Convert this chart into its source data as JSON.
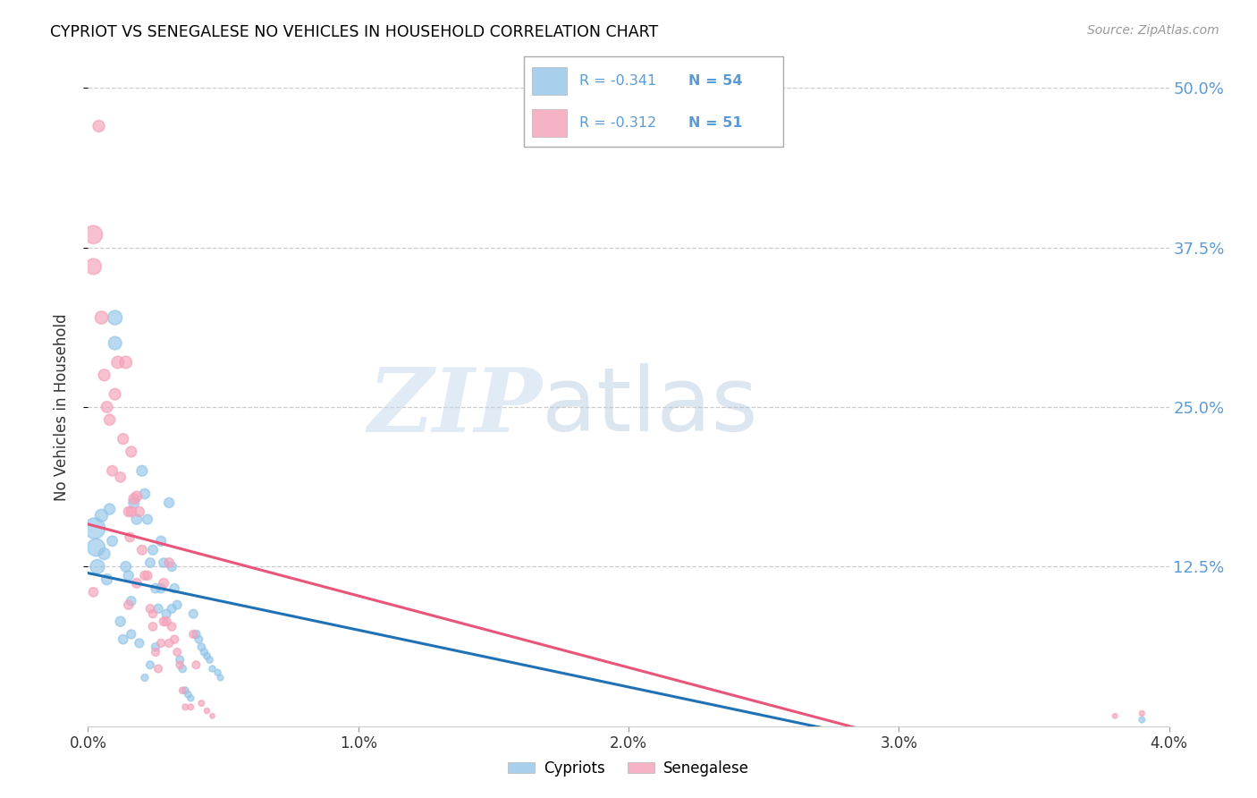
{
  "title": "CYPRIOT VS SENEGALESE NO VEHICLES IN HOUSEHOLD CORRELATION CHART",
  "source": "Source: ZipAtlas.com",
  "ylabel": "No Vehicles in Household",
  "watermark_zip": "ZIP",
  "watermark_atlas": "atlas",
  "xlim": [
    0.0,
    0.04
  ],
  "ylim": [
    0.0,
    0.5
  ],
  "xtick_labels": [
    "0.0%",
    "1.0%",
    "2.0%",
    "3.0%",
    "4.0%"
  ],
  "xtick_values": [
    0.0,
    0.01,
    0.02,
    0.03,
    0.04
  ],
  "ytick_values": [
    0.125,
    0.25,
    0.375,
    0.5
  ],
  "right_ytick_labels": [
    "12.5%",
    "25.0%",
    "37.5%",
    "50.0%"
  ],
  "cypriot_color": "#92C5E8",
  "senegalese_color": "#F4A0B8",
  "cypriot_line_color": "#2171B5",
  "senegalese_line_color": "#E8547A",
  "legend_R_cypriot": "-0.341",
  "legend_N_cypriot": "54",
  "legend_R_senegalese": "-0.312",
  "legend_N_senegalese": "51",
  "right_axis_color": "#5B9BD5",
  "cypriot_x": [
    0.00025,
    0.0003,
    0.00035,
    0.0005,
    0.0006,
    0.0007,
    0.0008,
    0.0009,
    0.001,
    0.001,
    0.0012,
    0.0013,
    0.0014,
    0.0015,
    0.0016,
    0.0016,
    0.0017,
    0.0018,
    0.0019,
    0.002,
    0.0021,
    0.0022,
    0.0023,
    0.0024,
    0.0025,
    0.0026,
    0.0027,
    0.0028,
    0.0029,
    0.003,
    0.0031,
    0.0032,
    0.0033,
    0.0034,
    0.0035,
    0.0036,
    0.0037,
    0.0038,
    0.0039,
    0.004,
    0.0041,
    0.0042,
    0.0043,
    0.0044,
    0.0045,
    0.0046,
    0.0048,
    0.0049,
    0.0031,
    0.0027,
    0.0025,
    0.0023,
    0.0021,
    0.039
  ],
  "cypriot_y": [
    0.155,
    0.14,
    0.125,
    0.165,
    0.135,
    0.115,
    0.17,
    0.145,
    0.32,
    0.3,
    0.082,
    0.068,
    0.125,
    0.118,
    0.098,
    0.072,
    0.175,
    0.162,
    0.065,
    0.2,
    0.182,
    0.162,
    0.128,
    0.138,
    0.108,
    0.092,
    0.145,
    0.128,
    0.088,
    0.175,
    0.125,
    0.108,
    0.095,
    0.052,
    0.045,
    0.028,
    0.025,
    0.022,
    0.088,
    0.072,
    0.068,
    0.062,
    0.058,
    0.055,
    0.052,
    0.045,
    0.042,
    0.038,
    0.092,
    0.108,
    0.062,
    0.048,
    0.038,
    0.005
  ],
  "cypriot_sizes": [
    280,
    200,
    130,
    100,
    85,
    75,
    75,
    68,
    130,
    110,
    62,
    55,
    68,
    62,
    55,
    50,
    72,
    65,
    50,
    72,
    65,
    60,
    58,
    60,
    55,
    52,
    62,
    55,
    50,
    62,
    55,
    52,
    48,
    40,
    36,
    30,
    28,
    25,
    48,
    42,
    38,
    35,
    33,
    30,
    28,
    25,
    25,
    22,
    48,
    55,
    42,
    38,
    32,
    22
  ],
  "senegalese_x": [
    0.0002,
    0.0002,
    0.0004,
    0.0005,
    0.0006,
    0.0007,
    0.0008,
    0.0009,
    0.001,
    0.0011,
    0.0012,
    0.0013,
    0.0014,
    0.0015,
    0.00155,
    0.0016,
    0.0017,
    0.0018,
    0.0019,
    0.002,
    0.0021,
    0.0022,
    0.0023,
    0.0024,
    0.0025,
    0.0026,
    0.0027,
    0.0028,
    0.0029,
    0.003,
    0.0031,
    0.0032,
    0.0033,
    0.0034,
    0.0035,
    0.0036,
    0.0038,
    0.0039,
    0.004,
    0.0042,
    0.0044,
    0.0046,
    0.003,
    0.0024,
    0.0016,
    0.0015,
    0.0018,
    0.0028,
    0.0002,
    0.039,
    0.038
  ],
  "senegalese_y": [
    0.385,
    0.36,
    0.47,
    0.32,
    0.275,
    0.25,
    0.24,
    0.2,
    0.26,
    0.285,
    0.195,
    0.225,
    0.285,
    0.168,
    0.148,
    0.215,
    0.178,
    0.18,
    0.168,
    0.138,
    0.118,
    0.118,
    0.092,
    0.088,
    0.058,
    0.045,
    0.065,
    0.112,
    0.082,
    0.128,
    0.078,
    0.068,
    0.058,
    0.048,
    0.028,
    0.015,
    0.015,
    0.072,
    0.048,
    0.018,
    0.012,
    0.008,
    0.065,
    0.078,
    0.168,
    0.095,
    0.112,
    0.082,
    0.105,
    0.01,
    0.008
  ],
  "senegalese_sizes": [
    210,
    160,
    85,
    105,
    85,
    80,
    75,
    68,
    82,
    95,
    65,
    72,
    95,
    62,
    56,
    72,
    68,
    68,
    62,
    58,
    52,
    52,
    45,
    42,
    40,
    38,
    42,
    58,
    48,
    58,
    45,
    42,
    38,
    35,
    28,
    22,
    22,
    42,
    38,
    22,
    18,
    15,
    42,
    45,
    65,
    52,
    58,
    48,
    55,
    18,
    15
  ]
}
